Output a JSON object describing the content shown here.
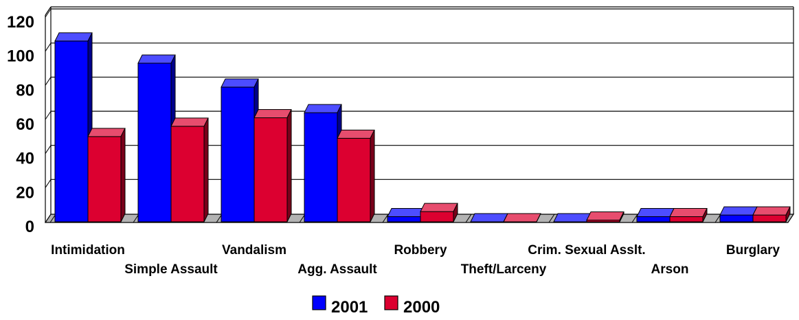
{
  "chart_data": {
    "type": "bar",
    "style": "3d-clustered",
    "categories": [
      "Intimidation",
      "Simple Assault",
      "Vandalism",
      "Agg. Assault",
      "Robbery",
      "Theft/Larceny",
      "Crim. Sexual Asslt.",
      "Arson",
      "Burglary"
    ],
    "series": [
      {
        "name": "2001",
        "color": "#0000ff",
        "values": [
          106,
          93,
          79,
          64,
          3,
          0,
          0,
          3,
          4
        ]
      },
      {
        "name": "2000",
        "color": "#dc0030",
        "values": [
          50,
          56,
          61,
          49,
          6,
          0,
          1,
          3,
          4
        ]
      }
    ],
    "ylim": [
      0,
      120
    ],
    "yticks": [
      "0",
      "20",
      "40",
      "60",
      "80",
      "100",
      "120"
    ],
    "grid": true,
    "legend": "bottom-center",
    "title": "",
    "xlabel": "",
    "ylabel": ""
  }
}
